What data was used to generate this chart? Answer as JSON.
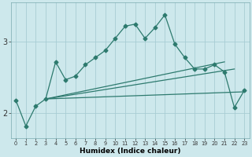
{
  "xlabel": "Humidex (Indice chaleur)",
  "bg_color": "#cde8ec",
  "line_color": "#2d7a6e",
  "grid_color": "#a8cdd4",
  "xlim": [
    -0.5,
    23.5
  ],
  "ylim": [
    1.65,
    3.55
  ],
  "yticks": [
    2,
    3
  ],
  "xticks": [
    0,
    1,
    2,
    3,
    4,
    5,
    6,
    7,
    8,
    9,
    10,
    11,
    12,
    13,
    14,
    15,
    16,
    17,
    18,
    19,
    20,
    21,
    22,
    23
  ],
  "line1_x": [
    0,
    1,
    2,
    3,
    4,
    5,
    6,
    7,
    8,
    9,
    10,
    11,
    12,
    13,
    14,
    15,
    16,
    17,
    18,
    19,
    20,
    21,
    22,
    23
  ],
  "line1_y": [
    2.18,
    1.82,
    2.1,
    2.2,
    2.72,
    2.47,
    2.52,
    2.68,
    2.78,
    2.88,
    3.05,
    3.22,
    3.25,
    3.05,
    3.2,
    3.38,
    2.97,
    2.78,
    2.62,
    2.62,
    2.68,
    2.58,
    2.08,
    2.32
  ],
  "line2_x": [
    3,
    23
  ],
  "line2_y": [
    2.2,
    2.3
  ],
  "line3_x": [
    3,
    22
  ],
  "line3_y": [
    2.2,
    2.62
  ],
  "line4_x": [
    3,
    21
  ],
  "line4_y": [
    2.2,
    2.72
  ]
}
